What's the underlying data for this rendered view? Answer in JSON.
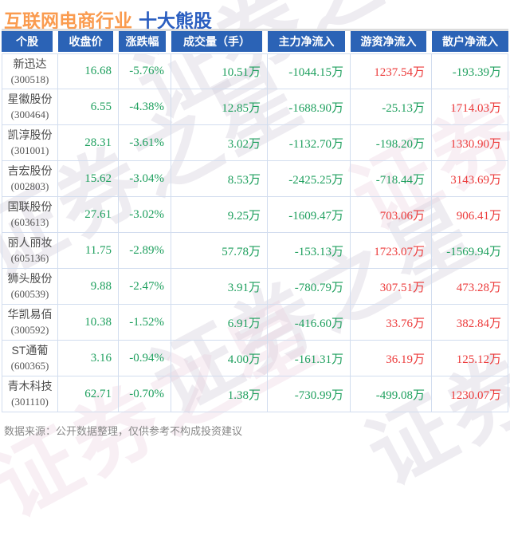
{
  "title": {
    "industry": "互联网电商行业",
    "suffix": "十大熊股"
  },
  "watermark": {
    "text": "证券之星"
  },
  "colors": {
    "green": "#1d9f5d",
    "red": "#ec3a3a",
    "header_bg": "#2b63b6",
    "border": "#d2ddef",
    "title_orange": "#fa9b4f",
    "title_blue": "#2a5ec0"
  },
  "table": {
    "headers": [
      "个股",
      "收盘价",
      "涨跌幅",
      "成交量（手）",
      "主力净流入",
      "游资净流入",
      "散户净流入"
    ],
    "rows": [
      {
        "name": "新迅达",
        "code": "(300518)",
        "close": {
          "t": "16.68",
          "c": "g"
        },
        "change": {
          "t": "-5.76%",
          "c": "g"
        },
        "volume": {
          "t": "10.51万",
          "c": "g"
        },
        "main": {
          "t": "-1044.15万",
          "c": "g"
        },
        "hot": {
          "t": "1237.54万",
          "c": "r"
        },
        "retail": {
          "t": "-193.39万",
          "c": "g"
        }
      },
      {
        "name": "星徽股份",
        "code": "(300464)",
        "close": {
          "t": "6.55",
          "c": "g"
        },
        "change": {
          "t": "-4.38%",
          "c": "g"
        },
        "volume": {
          "t": "12.85万",
          "c": "g"
        },
        "main": {
          "t": "-1688.90万",
          "c": "g"
        },
        "hot": {
          "t": "-25.13万",
          "c": "g"
        },
        "retail": {
          "t": "1714.03万",
          "c": "r"
        }
      },
      {
        "name": "凯淳股份",
        "code": "(301001)",
        "close": {
          "t": "28.31",
          "c": "g"
        },
        "change": {
          "t": "-3.61%",
          "c": "g"
        },
        "volume": {
          "t": "3.02万",
          "c": "g"
        },
        "main": {
          "t": "-1132.70万",
          "c": "g"
        },
        "hot": {
          "t": "-198.20万",
          "c": "g"
        },
        "retail": {
          "t": "1330.90万",
          "c": "r"
        }
      },
      {
        "name": "吉宏股份",
        "code": "(002803)",
        "close": {
          "t": "15.62",
          "c": "g"
        },
        "change": {
          "t": "-3.04%",
          "c": "g"
        },
        "volume": {
          "t": "8.53万",
          "c": "g"
        },
        "main": {
          "t": "-2425.25万",
          "c": "g"
        },
        "hot": {
          "t": "-718.44万",
          "c": "g"
        },
        "retail": {
          "t": "3143.69万",
          "c": "r"
        }
      },
      {
        "name": "国联股份",
        "code": "(603613)",
        "close": {
          "t": "27.61",
          "c": "g"
        },
        "change": {
          "t": "-3.02%",
          "c": "g"
        },
        "volume": {
          "t": "9.25万",
          "c": "g"
        },
        "main": {
          "t": "-1609.47万",
          "c": "g"
        },
        "hot": {
          "t": "703.06万",
          "c": "r"
        },
        "retail": {
          "t": "906.41万",
          "c": "r"
        }
      },
      {
        "name": "丽人丽妆",
        "code": "(605136)",
        "close": {
          "t": "11.75",
          "c": "g"
        },
        "change": {
          "t": "-2.89%",
          "c": "g"
        },
        "volume": {
          "t": "57.78万",
          "c": "g"
        },
        "main": {
          "t": "-153.13万",
          "c": "g"
        },
        "hot": {
          "t": "1723.07万",
          "c": "r"
        },
        "retail": {
          "t": "-1569.94万",
          "c": "g"
        }
      },
      {
        "name": "狮头股份",
        "code": "(600539)",
        "close": {
          "t": "9.88",
          "c": "g"
        },
        "change": {
          "t": "-2.47%",
          "c": "g"
        },
        "volume": {
          "t": "3.91万",
          "c": "g"
        },
        "main": {
          "t": "-780.79万",
          "c": "g"
        },
        "hot": {
          "t": "307.51万",
          "c": "r"
        },
        "retail": {
          "t": "473.28万",
          "c": "r"
        }
      },
      {
        "name": "华凯易佰",
        "code": "(300592)",
        "close": {
          "t": "10.38",
          "c": "g"
        },
        "change": {
          "t": "-1.52%",
          "c": "g"
        },
        "volume": {
          "t": "6.91万",
          "c": "g"
        },
        "main": {
          "t": "-416.60万",
          "c": "g"
        },
        "hot": {
          "t": "33.76万",
          "c": "r"
        },
        "retail": {
          "t": "382.84万",
          "c": "r"
        }
      },
      {
        "name": "ST通葡",
        "code": "(600365)",
        "close": {
          "t": "3.16",
          "c": "g"
        },
        "change": {
          "t": "-0.94%",
          "c": "g"
        },
        "volume": {
          "t": "4.00万",
          "c": "g"
        },
        "main": {
          "t": "-161.31万",
          "c": "g"
        },
        "hot": {
          "t": "36.19万",
          "c": "r"
        },
        "retail": {
          "t": "125.12万",
          "c": "r"
        }
      },
      {
        "name": "青木科技",
        "code": "(301110)",
        "close": {
          "t": "62.71",
          "c": "g"
        },
        "change": {
          "t": "-0.70%",
          "c": "g"
        },
        "volume": {
          "t": "1.38万",
          "c": "g"
        },
        "main": {
          "t": "-730.99万",
          "c": "g"
        },
        "hot": {
          "t": "-499.08万",
          "c": "g"
        },
        "retail": {
          "t": "1230.07万",
          "c": "r"
        }
      }
    ]
  },
  "footer": {
    "text": "数据来源：公开数据整理，仅供参考不构成投资建议"
  },
  "chart_data": {
    "type": "table",
    "title": "互联网电商行业 十大熊股",
    "columns": [
      "个股",
      "收盘价",
      "涨跌幅",
      "成交量（手）",
      "主力净流入",
      "游资净流入",
      "散户净流入"
    ],
    "rows": [
      [
        "新迅达 (300518)",
        16.68,
        "-5.76%",
        "10.51万",
        "-1044.15万",
        "1237.54万",
        "-193.39万"
      ],
      [
        "星徽股份 (300464)",
        6.55,
        "-4.38%",
        "12.85万",
        "-1688.90万",
        "-25.13万",
        "1714.03万"
      ],
      [
        "凯淳股份 (301001)",
        28.31,
        "-3.61%",
        "3.02万",
        "-1132.70万",
        "-198.20万",
        "1330.90万"
      ],
      [
        "吉宏股份 (002803)",
        15.62,
        "-3.04%",
        "8.53万",
        "-2425.25万",
        "-718.44万",
        "3143.69万"
      ],
      [
        "国联股份 (603613)",
        27.61,
        "-3.02%",
        "9.25万",
        "-1609.47万",
        "703.06万",
        "906.41万"
      ],
      [
        "丽人丽妆 (605136)",
        11.75,
        "-2.89%",
        "57.78万",
        "-153.13万",
        "1723.07万",
        "-1569.94万"
      ],
      [
        "狮头股份 (600539)",
        9.88,
        "-2.47%",
        "3.91万",
        "-780.79万",
        "307.51万",
        "473.28万"
      ],
      [
        "华凯易佰 (300592)",
        10.38,
        "-1.52%",
        "6.91万",
        "-416.60万",
        "33.76万",
        "382.84万"
      ],
      [
        "ST通葡 (600365)",
        3.16,
        "-0.94%",
        "4.00万",
        "-161.31万",
        "36.19万",
        "125.12万"
      ],
      [
        "青木科技 (301110)",
        62.71,
        "-0.70%",
        "1.38万",
        "-730.99万",
        "-499.08万",
        "1230.07万"
      ]
    ]
  }
}
